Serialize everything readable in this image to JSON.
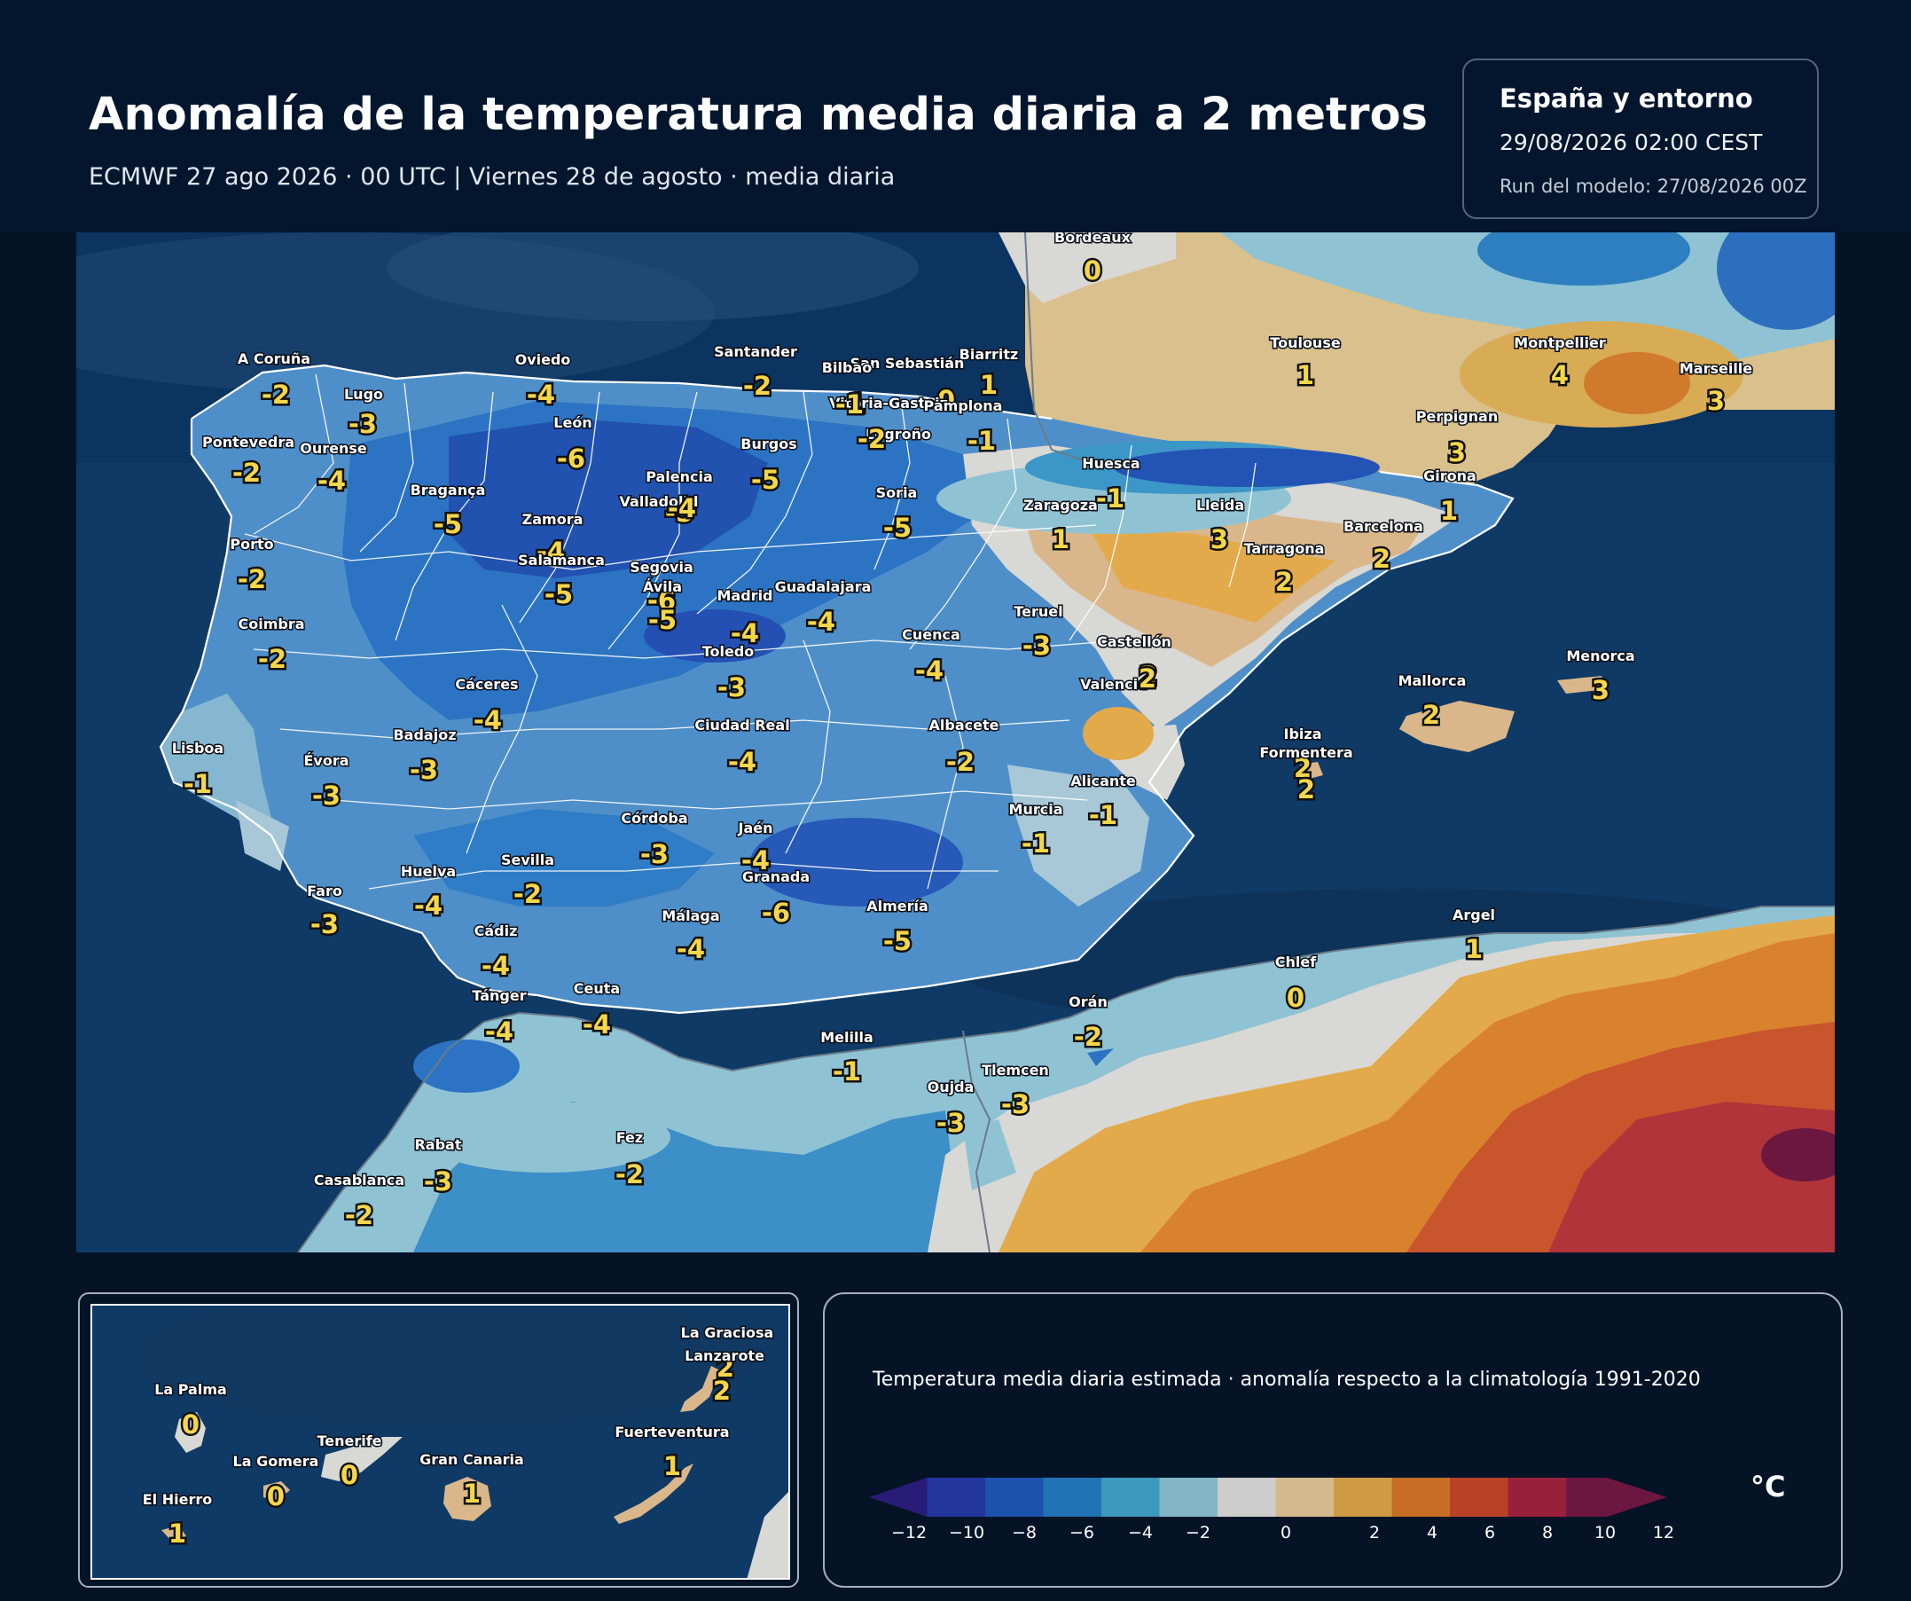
{
  "header": {
    "title": "Anomalía de la temperatura media diaria a 2 metros",
    "subtitle": "ECMWF 27 ago 2026 · 00 UTC  |  Viernes 28 de agosto · media diaria"
  },
  "info": {
    "region": "España y entorno",
    "valid": "29/08/2026  02:00 CEST",
    "run": "Run del modelo: 27/08/2026 00Z"
  },
  "cities": [
    {
      "name": "Bordeaux",
      "value": "0"
    },
    {
      "name": "Toulouse",
      "value": "1"
    },
    {
      "name": "Montpellier",
      "value": "4"
    },
    {
      "name": "Marseille",
      "value": "3"
    },
    {
      "name": "Biarritz",
      "value": "1"
    },
    {
      "name": "San Sebastián",
      "value": "0"
    },
    {
      "name": "Bilbao",
      "value": "-1"
    },
    {
      "name": "Santander",
      "value": "-2"
    },
    {
      "name": "Oviedo",
      "value": "-4"
    },
    {
      "name": "A Coruña",
      "value": "-2"
    },
    {
      "name": "Lugo",
      "value": "-3"
    },
    {
      "name": "Pontevedra",
      "value": "-2"
    },
    {
      "name": "Ourense",
      "value": "-4"
    },
    {
      "name": "León",
      "value": "-6"
    },
    {
      "name": "Vitoria-Gasteiz",
      "value": "-1"
    },
    {
      "name": "Pamplona",
      "value": "-1"
    },
    {
      "name": "Logroño",
      "value": "-2"
    },
    {
      "name": "Burgos",
      "value": "-5"
    },
    {
      "name": "Palencia",
      "value": "-5"
    },
    {
      "name": "Perpignan",
      "value": "3"
    },
    {
      "name": "Huesca",
      "value": "-1"
    },
    {
      "name": "Girona",
      "value": "1"
    },
    {
      "name": "Soria",
      "value": "-5"
    },
    {
      "name": "Zaragoza",
      "value": "1"
    },
    {
      "name": "Lleida",
      "value": "3"
    },
    {
      "name": "Bragança",
      "value": "-5"
    },
    {
      "name": "Valladolid",
      "value": "-4"
    },
    {
      "name": "Zamora",
      "value": "-4"
    },
    {
      "name": "Barcelona",
      "value": "2"
    },
    {
      "name": "Tarragona",
      "value": "2"
    },
    {
      "name": "Porto",
      "value": "-2"
    },
    {
      "name": "Salamanca",
      "value": "-5"
    },
    {
      "name": "Segovia",
      "value": "-6"
    },
    {
      "name": "Ávila",
      "value": "-5"
    },
    {
      "name": "Guadalajara",
      "value": "-4"
    },
    {
      "name": "Madrid",
      "value": "-4"
    },
    {
      "name": "Teruel",
      "value": "-3"
    },
    {
      "name": "Coimbra",
      "value": "-2"
    },
    {
      "name": "Cuenca",
      "value": "-4"
    },
    {
      "name": "Toledo",
      "value": "-3"
    },
    {
      "name": "Castellón",
      "value": "2"
    },
    {
      "name": "Menorca",
      "value": "3"
    },
    {
      "name": "Cáceres",
      "value": "-4"
    },
    {
      "name": "Valencia",
      "value": "2"
    },
    {
      "name": "Mallorca",
      "value": "2"
    },
    {
      "name": "Badajoz",
      "value": "-3"
    },
    {
      "name": "Ciudad Real",
      "value": "-4"
    },
    {
      "name": "Albacete",
      "value": "-2"
    },
    {
      "name": "Ibiza",
      "value": "2"
    },
    {
      "name": "Formentera",
      "value": "2"
    },
    {
      "name": "Lisboa",
      "value": "-1"
    },
    {
      "name": "Évora",
      "value": "-3"
    },
    {
      "name": "Alicante",
      "value": "-1"
    },
    {
      "name": "Murcia",
      "value": "-1"
    },
    {
      "name": "Córdoba",
      "value": "-3"
    },
    {
      "name": "Jaén",
      "value": "-4"
    },
    {
      "name": "Huelva",
      "value": "-4"
    },
    {
      "name": "Sevilla",
      "value": "-2"
    },
    {
      "name": "Granada",
      "value": "-6"
    },
    {
      "name": "Faro",
      "value": "-3"
    },
    {
      "name": "Almería",
      "value": "-5"
    },
    {
      "name": "Málaga",
      "value": "-4"
    },
    {
      "name": "Cádiz",
      "value": "-4"
    },
    {
      "name": "Argel",
      "value": "1"
    },
    {
      "name": "Chlef",
      "value": "0"
    },
    {
      "name": "Ceuta",
      "value": "-4"
    },
    {
      "name": "Tánger",
      "value": "-4"
    },
    {
      "name": "Orán",
      "value": "-2"
    },
    {
      "name": "Melilla",
      "value": "-1"
    },
    {
      "name": "Tlemcen",
      "value": "-3"
    },
    {
      "name": "Oujda",
      "value": "-3"
    },
    {
      "name": "Rabat",
      "value": "-3"
    },
    {
      "name": "Fez",
      "value": "-2"
    },
    {
      "name": "Casablanca",
      "value": "-2"
    }
  ],
  "canarias": [
    {
      "name": "La Graciosa",
      "value": "2"
    },
    {
      "name": "Lanzarote",
      "value": "2"
    },
    {
      "name": "La Palma",
      "value": "0"
    },
    {
      "name": "Tenerife",
      "value": "0"
    },
    {
      "name": "Fuerteventura",
      "value": "1"
    },
    {
      "name": "La Gomera",
      "value": "0"
    },
    {
      "name": "Gran Canaria",
      "value": "1"
    },
    {
      "name": "El Hierro",
      "value": "1"
    }
  ],
  "legend": {
    "description": "Temperatura media diaria estimada · anomalía respecto a la climatología 1991-2020",
    "unit": "°C",
    "ticks": [
      "−12",
      "−10",
      "−8",
      "−6",
      "−4",
      "−2",
      "0",
      "2",
      "4",
      "6",
      "8",
      "10",
      "12"
    ],
    "colors": [
      "#281c78",
      "#24369e",
      "#1c52ae",
      "#2173b4",
      "#3c98bc",
      "#82b6c6",
      "#cdcdcd",
      "#d4b98e",
      "#cf9a44",
      "#c86d26",
      "#b84128",
      "#99203a",
      "#6c1740"
    ]
  }
}
